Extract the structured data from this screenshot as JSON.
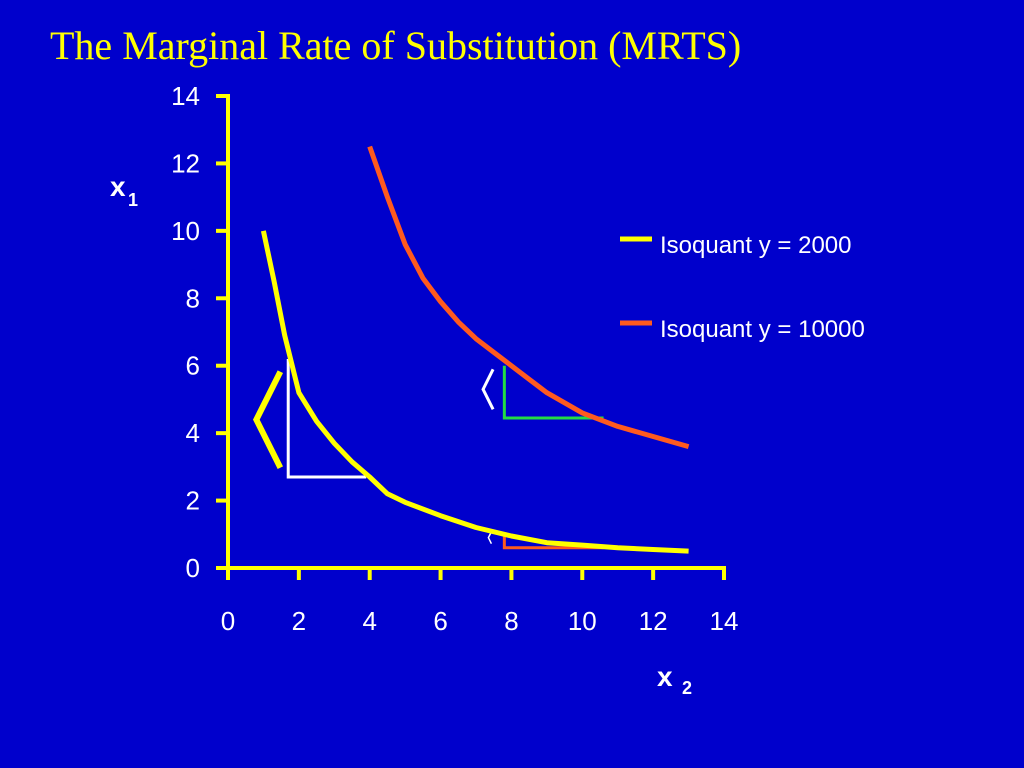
{
  "slide": {
    "title": "The Marginal Rate of Substitution (MRTS)"
  },
  "colors": {
    "background": "#0000cc",
    "axis": "#ffff00",
    "text": "#ffffff",
    "title": "#ffff00",
    "isoquant_2000": "#ffff00",
    "isoquant_10000": "#ff5a1e",
    "triangle_white": "#ffffff",
    "triangle_green": "#22dd44",
    "triangle_orange": "#ff5a1e"
  },
  "chart_data": {
    "type": "line",
    "title": "The Marginal Rate of Substitution (MRTS)",
    "xlabel": {
      "main": "x",
      "sub": "2"
    },
    "ylabel": {
      "main": "x",
      "sub": "1"
    },
    "xlim": [
      0,
      14
    ],
    "ylim": [
      0,
      14
    ],
    "xticks": [
      "0",
      "2",
      "4",
      "6",
      "8",
      "10",
      "12",
      "14"
    ],
    "yticks": [
      "0",
      "2",
      "4",
      "6",
      "8",
      "10",
      "12",
      "14"
    ],
    "grid": false,
    "legend_position": "right",
    "series": [
      {
        "name": "Isoquant y = 2000",
        "color": "#ffff00",
        "x": [
          1,
          1.3,
          1.6,
          2,
          2.5,
          3,
          3.5,
          4,
          4.5,
          5,
          6,
          7,
          8,
          9,
          10,
          11,
          12,
          13
        ],
        "y": [
          10,
          8.5,
          6.9,
          5.2,
          4.35,
          3.7,
          3.15,
          2.7,
          2.2,
          1.95,
          1.55,
          1.2,
          0.95,
          0.75,
          0.68,
          0.6,
          0.55,
          0.5
        ]
      },
      {
        "name": "Isoquant y = 10000",
        "color": "#ff5a1e",
        "x": [
          4,
          4.5,
          5,
          5.5,
          6,
          6.5,
          7,
          7.5,
          8,
          8.5,
          9,
          9.5,
          10,
          11,
          12,
          13
        ],
        "y": [
          12.5,
          11,
          9.6,
          8.6,
          7.9,
          7.3,
          6.8,
          6.4,
          6,
          5.6,
          5.2,
          4.9,
          4.6,
          4.2,
          3.9,
          3.6
        ]
      }
    ],
    "annotations": [
      {
        "kind": "mrts-triangle",
        "color": "#ffffff",
        "vertex": [
          1.7,
          2.7
        ],
        "top_y": 6.2,
        "right_x": 3.9
      },
      {
        "kind": "mrts-triangle",
        "color": "#22dd44",
        "vertex": [
          7.8,
          4.45
        ],
        "top_y": 6.0,
        "right_x": 10.6
      },
      {
        "kind": "mrts-triangle",
        "color": "#ff5a1e",
        "vertex": [
          7.8,
          0.6
        ],
        "top_y": 0.95,
        "right_x": 10.6
      },
      {
        "kind": "bracket",
        "color": "#ffff00",
        "size": "large",
        "at": [
          0.8,
          4.4
        ]
      },
      {
        "kind": "bracket",
        "color": "#ffffff",
        "size": "medium",
        "at": [
          7.2,
          5.3
        ]
      },
      {
        "kind": "bracket",
        "color": "#ffffff",
        "size": "small",
        "at": [
          7.35,
          0.9
        ]
      }
    ]
  }
}
